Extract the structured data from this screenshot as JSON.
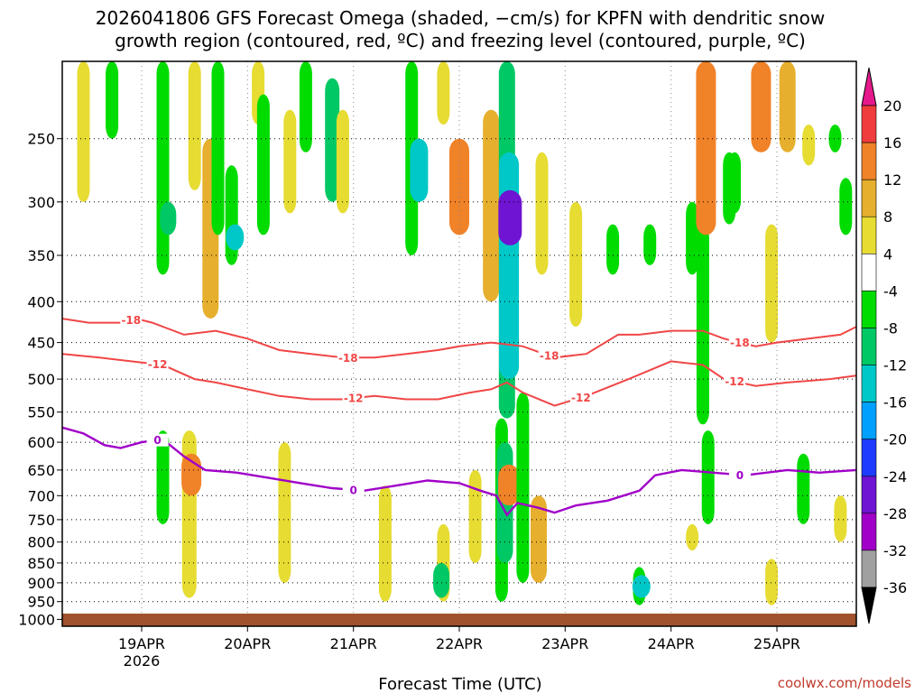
{
  "chart_data": {
    "type": "heatmap",
    "title_lines": [
      "2026041806 GFS Forecast Omega (shaded, −cm/s) for KPFN with dendritic snow",
      "growth region (contoured, red, ºC) and freezing level (contoured, purple, ºC)"
    ],
    "xlabel": "Forecast Time (UTC)",
    "credit": "coolwx.com/models",
    "x_range_days": [
      -0.75,
      6.75
    ],
    "x_ticks": [
      {
        "day": 0,
        "label": "19APR",
        "sub": "2026"
      },
      {
        "day": 1,
        "label": "20APR"
      },
      {
        "day": 2,
        "label": "21APR"
      },
      {
        "day": 3,
        "label": "22APR"
      },
      {
        "day": 4,
        "label": "23APR"
      },
      {
        "day": 5,
        "label": "24APR"
      },
      {
        "day": 6,
        "label": "25APR"
      }
    ],
    "y_range_hpa": [
      200,
      1020
    ],
    "y_ticks": [
      250,
      300,
      350,
      400,
      450,
      500,
      550,
      600,
      650,
      700,
      750,
      800,
      850,
      900,
      950,
      1000
    ],
    "colorbar": {
      "levels": [
        20,
        16,
        12,
        8,
        4,
        -4,
        -8,
        -12,
        -16,
        -20,
        -24,
        -28,
        -32,
        -36
      ],
      "bins": [
        {
          "from": 20,
          "to": 16,
          "color": "#f03c3c"
        },
        {
          "from": 16,
          "to": 12,
          "color": "#f08228"
        },
        {
          "from": 12,
          "to": 8,
          "color": "#e6af2d"
        },
        {
          "from": 8,
          "to": 4,
          "color": "#e6dc32"
        },
        {
          "from": 4,
          "to": -4,
          "color": "#ffffff"
        },
        {
          "from": -4,
          "to": -8,
          "color": "#00dc00"
        },
        {
          "from": -8,
          "to": -12,
          "color": "#00c864"
        },
        {
          "from": -12,
          "to": -16,
          "color": "#00c8c8"
        },
        {
          "from": -16,
          "to": -20,
          "color": "#00a0ff"
        },
        {
          "from": -20,
          "to": -24,
          "color": "#1e3cff"
        },
        {
          "from": -24,
          "to": -28,
          "color": "#6e14d2"
        },
        {
          "from": -28,
          "to": -32,
          "color": "#a000c8"
        },
        {
          "from": -32,
          "to": -36,
          "color": "#a0a0a0"
        }
      ],
      "top_arrow_color": "#e6198c",
      "bottom_arrow_color": "#000000"
    },
    "ground_color": "#a0522d",
    "omega_features": [
      {
        "day": -0.55,
        "top": 200,
        "bottom": 300,
        "value": 6
      },
      {
        "day": -0.28,
        "top": 200,
        "bottom": 250,
        "value": -6
      },
      {
        "day": 0.2,
        "top": 200,
        "bottom": 370,
        "value": -6
      },
      {
        "day": 0.25,
        "top": 300,
        "bottom": 330,
        "value": -10
      },
      {
        "day": 0.5,
        "top": 200,
        "bottom": 290,
        "value": 6
      },
      {
        "day": 0.65,
        "top": 250,
        "bottom": 420,
        "value": 10
      },
      {
        "day": 0.72,
        "top": 200,
        "bottom": 330,
        "value": -6
      },
      {
        "day": 0.85,
        "top": 270,
        "bottom": 360,
        "value": -6
      },
      {
        "day": 0.88,
        "top": 320,
        "bottom": 345,
        "value": -12
      },
      {
        "day": 1.1,
        "top": 200,
        "bottom": 240,
        "value": 6
      },
      {
        "day": 1.15,
        "top": 220,
        "bottom": 330,
        "value": -6
      },
      {
        "day": 1.4,
        "top": 230,
        "bottom": 310,
        "value": 6
      },
      {
        "day": 1.55,
        "top": 200,
        "bottom": 260,
        "value": -6
      },
      {
        "day": 1.8,
        "top": 210,
        "bottom": 300,
        "value": -8
      },
      {
        "day": 1.9,
        "top": 230,
        "bottom": 310,
        "value": 6
      },
      {
        "day": 2.55,
        "top": 200,
        "bottom": 350,
        "value": -6
      },
      {
        "day": 2.62,
        "top": 250,
        "bottom": 300,
        "value": -12
      },
      {
        "day": 2.85,
        "top": 200,
        "bottom": 240,
        "value": 6
      },
      {
        "day": 3.0,
        "top": 250,
        "bottom": 330,
        "value": 14
      },
      {
        "day": 3.3,
        "top": 230,
        "bottom": 400,
        "value": 10
      },
      {
        "day": 3.45,
        "top": 200,
        "bottom": 560,
        "value": -10
      },
      {
        "day": 3.47,
        "top": 260,
        "bottom": 500,
        "value": -14
      },
      {
        "day": 3.48,
        "top": 290,
        "bottom": 340,
        "value": -26
      },
      {
        "day": 3.78,
        "top": 260,
        "bottom": 370,
        "value": 6
      },
      {
        "day": 4.1,
        "top": 300,
        "bottom": 430,
        "value": 6
      },
      {
        "day": 4.45,
        "top": 320,
        "bottom": 370,
        "value": -6
      },
      {
        "day": 4.8,
        "top": 320,
        "bottom": 360,
        "value": -6
      },
      {
        "day": 5.2,
        "top": 300,
        "bottom": 370,
        "value": -6
      },
      {
        "day": 5.3,
        "top": 320,
        "bottom": 570,
        "value": -6
      },
      {
        "day": 5.33,
        "top": 200,
        "bottom": 330,
        "value": 14
      },
      {
        "day": 5.55,
        "top": 260,
        "bottom": 320,
        "value": -6
      },
      {
        "day": 5.6,
        "top": 260,
        "bottom": 310,
        "value": -6
      },
      {
        "day": 5.85,
        "top": 200,
        "bottom": 260,
        "value": 14
      },
      {
        "day": 5.95,
        "top": 320,
        "bottom": 450,
        "value": 6
      },
      {
        "day": 6.1,
        "top": 200,
        "bottom": 260,
        "value": 10
      },
      {
        "day": 6.3,
        "top": 240,
        "bottom": 270,
        "value": 6
      },
      {
        "day": 6.55,
        "top": 240,
        "bottom": 260,
        "value": -6
      },
      {
        "day": 6.65,
        "top": 280,
        "bottom": 330,
        "value": -6
      },
      {
        "day": 0.45,
        "top": 580,
        "bottom": 940,
        "value": 8
      },
      {
        "day": 0.47,
        "top": 620,
        "bottom": 700,
        "value": 14
      },
      {
        "day": 0.2,
        "top": 580,
        "bottom": 760,
        "value": -6
      },
      {
        "day": 1.35,
        "top": 600,
        "bottom": 900,
        "value": 6
      },
      {
        "day": 2.3,
        "top": 680,
        "bottom": 950,
        "value": 6
      },
      {
        "day": 2.85,
        "top": 760,
        "bottom": 950,
        "value": 6
      },
      {
        "day": 2.83,
        "top": 850,
        "bottom": 940,
        "value": -10
      },
      {
        "day": 3.15,
        "top": 650,
        "bottom": 850,
        "value": 6
      },
      {
        "day": 3.4,
        "top": 560,
        "bottom": 950,
        "value": -6
      },
      {
        "day": 3.43,
        "top": 600,
        "bottom": 850,
        "value": -10
      },
      {
        "day": 3.47,
        "top": 640,
        "bottom": 720,
        "value": 16
      },
      {
        "day": 3.6,
        "top": 520,
        "bottom": 900,
        "value": -6
      },
      {
        "day": 3.75,
        "top": 700,
        "bottom": 900,
        "value": 10
      },
      {
        "day": 4.7,
        "top": 860,
        "bottom": 960,
        "value": -6
      },
      {
        "day": 4.72,
        "top": 880,
        "bottom": 940,
        "value": -12
      },
      {
        "day": 5.35,
        "top": 580,
        "bottom": 760,
        "value": -6
      },
      {
        "day": 5.2,
        "top": 760,
        "bottom": 820,
        "value": 6
      },
      {
        "day": 5.95,
        "top": 840,
        "bottom": 960,
        "value": 6
      },
      {
        "day": 6.25,
        "top": 620,
        "bottom": 760,
        "value": -6
      },
      {
        "day": 6.6,
        "top": 700,
        "bottom": 800,
        "value": 6
      }
    ],
    "contours": [
      {
        "label": "-18",
        "color": "#f04646",
        "kind": "dgz",
        "label_days": [
          -0.1,
          1.95,
          3.85,
          5.65
        ],
        "points": [
          [
            -0.75,
            420
          ],
          [
            -0.5,
            425
          ],
          [
            -0.2,
            425
          ],
          [
            -0.05,
            420
          ],
          [
            0.1,
            425
          ],
          [
            0.4,
            440
          ],
          [
            0.7,
            435
          ],
          [
            1.0,
            445
          ],
          [
            1.3,
            460
          ],
          [
            1.6,
            465
          ],
          [
            1.9,
            470
          ],
          [
            2.2,
            470
          ],
          [
            2.5,
            465
          ],
          [
            2.8,
            460
          ],
          [
            3.0,
            455
          ],
          [
            3.3,
            450
          ],
          [
            3.6,
            455
          ],
          [
            3.9,
            470
          ],
          [
            4.2,
            465
          ],
          [
            4.5,
            440
          ],
          [
            4.7,
            440
          ],
          [
            5.0,
            435
          ],
          [
            5.3,
            435
          ],
          [
            5.5,
            445
          ],
          [
            5.8,
            455
          ],
          [
            6.0,
            450
          ],
          [
            6.3,
            445
          ],
          [
            6.6,
            440
          ],
          [
            6.75,
            430
          ]
        ]
      },
      {
        "label": "-12",
        "color": "#f04646",
        "kind": "dgz",
        "label_days": [
          0.15,
          2.0,
          4.15,
          5.6
        ],
        "points": [
          [
            -0.75,
            465
          ],
          [
            -0.4,
            470
          ],
          [
            -0.1,
            475
          ],
          [
            0.2,
            480
          ],
          [
            0.5,
            500
          ],
          [
            0.7,
            505
          ],
          [
            1.0,
            515
          ],
          [
            1.3,
            525
          ],
          [
            1.6,
            530
          ],
          [
            1.9,
            530
          ],
          [
            2.2,
            525
          ],
          [
            2.5,
            530
          ],
          [
            2.8,
            530
          ],
          [
            3.1,
            520
          ],
          [
            3.3,
            515
          ],
          [
            3.45,
            505
          ],
          [
            3.6,
            520
          ],
          [
            3.9,
            540
          ],
          [
            4.2,
            525
          ],
          [
            4.6,
            500
          ],
          [
            5.0,
            475
          ],
          [
            5.3,
            480
          ],
          [
            5.5,
            500
          ],
          [
            5.8,
            510
          ],
          [
            6.1,
            505
          ],
          [
            6.5,
            500
          ],
          [
            6.75,
            495
          ]
        ]
      },
      {
        "label": "0",
        "color": "#a000c8",
        "kind": "freezing",
        "label_days": [
          0.15,
          2.0,
          5.65
        ],
        "points": [
          [
            -0.75,
            575
          ],
          [
            -0.55,
            585
          ],
          [
            -0.35,
            605
          ],
          [
            -0.2,
            610
          ],
          [
            0.0,
            600
          ],
          [
            0.2,
            595
          ],
          [
            0.4,
            625
          ],
          [
            0.6,
            650
          ],
          [
            0.9,
            655
          ],
          [
            1.2,
            665
          ],
          [
            1.5,
            675
          ],
          [
            1.8,
            685
          ],
          [
            2.1,
            690
          ],
          [
            2.4,
            680
          ],
          [
            2.7,
            670
          ],
          [
            3.0,
            675
          ],
          [
            3.2,
            690
          ],
          [
            3.35,
            700
          ],
          [
            3.45,
            740
          ],
          [
            3.55,
            715
          ],
          [
            3.75,
            725
          ],
          [
            3.9,
            735
          ],
          [
            4.1,
            720
          ],
          [
            4.4,
            710
          ],
          [
            4.7,
            690
          ],
          [
            4.85,
            660
          ],
          [
            5.1,
            650
          ],
          [
            5.4,
            655
          ],
          [
            5.7,
            660
          ],
          [
            6.1,
            650
          ],
          [
            6.4,
            655
          ],
          [
            6.75,
            650
          ]
        ]
      }
    ]
  }
}
